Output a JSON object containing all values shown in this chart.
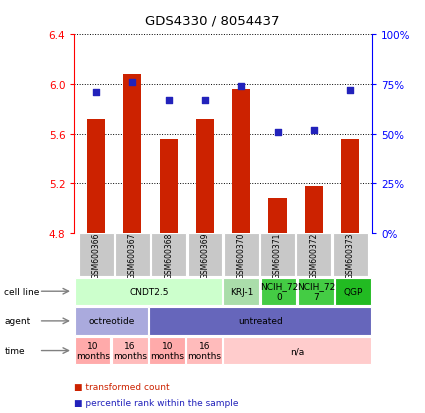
{
  "title": "GDS4330 / 8054437",
  "samples": [
    "GSM600366",
    "GSM600367",
    "GSM600368",
    "GSM600369",
    "GSM600370",
    "GSM600371",
    "GSM600372",
    "GSM600373"
  ],
  "bar_values": [
    5.72,
    6.08,
    5.56,
    5.72,
    5.96,
    5.08,
    5.18,
    5.56
  ],
  "percentile_values": [
    71,
    76,
    67,
    67,
    74,
    51,
    52,
    72
  ],
  "ylim": [
    4.8,
    6.4
  ],
  "yticks": [
    4.8,
    5.2,
    5.6,
    6.0,
    6.4
  ],
  "y2ticks": [
    0,
    25,
    50,
    75,
    100
  ],
  "y2ticklabels": [
    "0%",
    "25%",
    "50%",
    "75%",
    "100%"
  ],
  "bar_color": "#cc2200",
  "dot_color": "#2222bb",
  "bar_width": 0.5,
  "cell_line_groups": [
    {
      "label": "CNDT2.5",
      "start": 0,
      "end": 3,
      "color": "#ccffcc"
    },
    {
      "label": "KRJ-1",
      "start": 4,
      "end": 4,
      "color": "#aaddaa"
    },
    {
      "label": "NCIH_72\n0",
      "start": 5,
      "end": 5,
      "color": "#44cc44"
    },
    {
      "label": "NCIH_72\n7",
      "start": 6,
      "end": 6,
      "color": "#44cc44"
    },
    {
      "label": "QGP",
      "start": 7,
      "end": 7,
      "color": "#22bb22"
    }
  ],
  "agent_groups": [
    {
      "label": "octreotide",
      "start": 0,
      "end": 1,
      "color": "#aaaadd"
    },
    {
      "label": "untreated",
      "start": 2,
      "end": 7,
      "color": "#6666bb"
    }
  ],
  "time_groups": [
    {
      "label": "10\nmonths",
      "start": 0,
      "end": 0,
      "color": "#ffaaaa"
    },
    {
      "label": "16\nmonths",
      "start": 1,
      "end": 1,
      "color": "#ffbbbb"
    },
    {
      "label": "10\nmonths",
      "start": 2,
      "end": 2,
      "color": "#ffaaaa"
    },
    {
      "label": "16\nmonths",
      "start": 3,
      "end": 3,
      "color": "#ffbbbb"
    },
    {
      "label": "n/a",
      "start": 4,
      "end": 7,
      "color": "#ffcccc"
    }
  ],
  "row_labels": [
    "cell line",
    "agent",
    "time"
  ],
  "legend_items": [
    {
      "label": "transformed count",
      "color": "#cc2200"
    },
    {
      "label": "percentile rank within the sample",
      "color": "#2222bb"
    }
  ]
}
